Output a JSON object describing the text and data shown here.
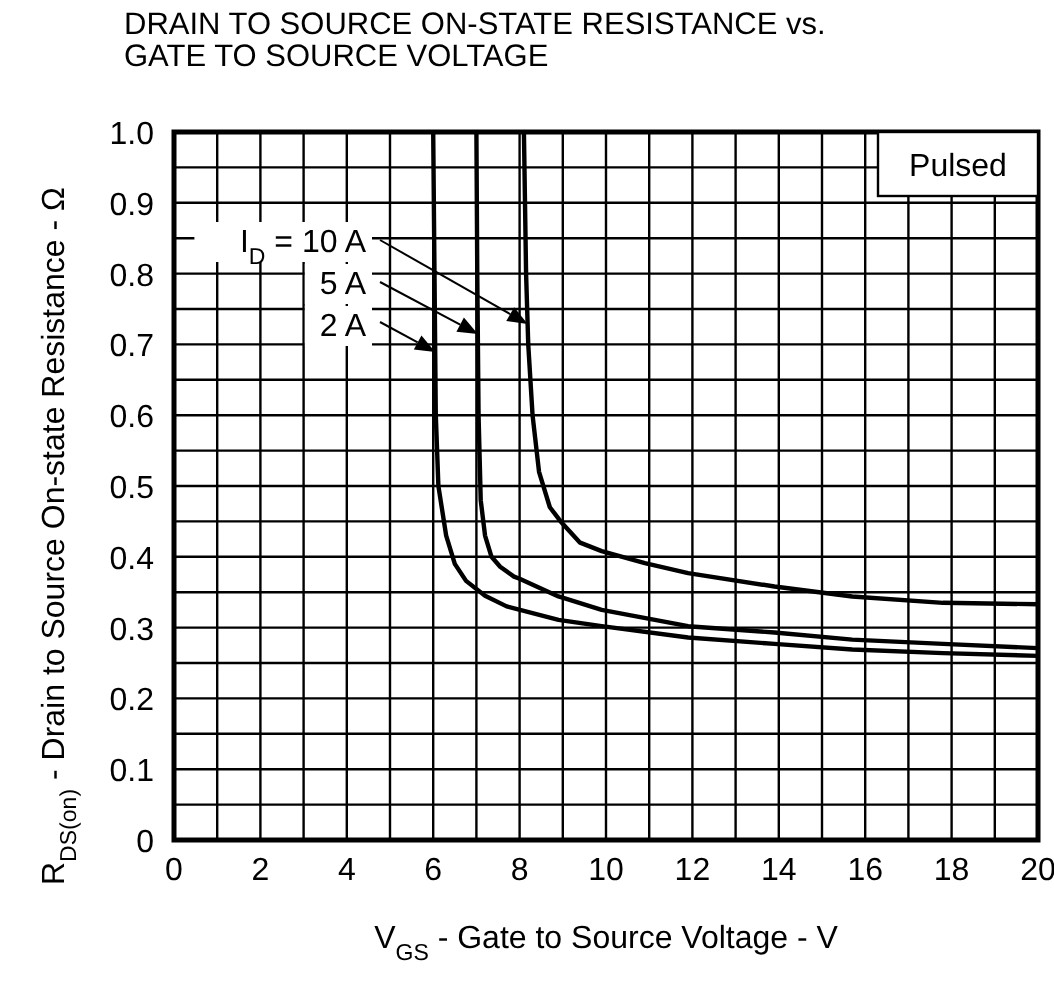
{
  "chart_data": {
    "type": "line",
    "title": "DRAIN TO SOURCE ON-STATE RESISTANCE vs.\nGATE TO SOURCE VOLTAGE",
    "xlabel": "V$_{GS}$ - Gate to Source Voltage - V",
    "ylabel": "R$_{DS(on)}$ - Drain to Source On-state Resistance - Ω",
    "annotations": [
      "Pulsed"
    ],
    "xlim": [
      0,
      20
    ],
    "ylim": [
      0,
      1
    ],
    "xticks": [
      0,
      {
        "value": 1,
        "label": null
      },
      2,
      {
        "value": 3,
        "label": null
      },
      4,
      {
        "value": 5,
        "label": null
      },
      6,
      {
        "value": 7,
        "label": null
      },
      8,
      {
        "value": 9,
        "label": null
      },
      10,
      {
        "value": 11,
        "label": null
      },
      12,
      {
        "value": 13,
        "label": null
      },
      14,
      {
        "value": 15,
        "label": null
      },
      16,
      {
        "value": 17,
        "label": null
      },
      18,
      {
        "value": 19,
        "label": null
      },
      20
    ],
    "yticks": [
      0,
      {
        "value": 0.05,
        "label": null
      },
      0.1,
      {
        "value": 0.15,
        "label": null
      },
      0.2,
      {
        "value": 0.25,
        "label": null
      },
      0.3,
      {
        "value": 0.35,
        "label": null
      },
      0.4,
      {
        "value": 0.45,
        "label": null
      },
      0.5,
      {
        "value": 0.55,
        "label": null
      },
      0.6,
      {
        "value": 0.65,
        "label": null
      },
      0.7,
      {
        "value": 0.75,
        "label": null
      },
      0.8,
      {
        "value": 0.85,
        "label": null
      },
      0.9,
      {
        "value": 0.95,
        "label": null
      },
      {
        "value": 1,
        "label": "1.0"
      }
    ],
    "grid": true,
    "legend": "top left",
    "line_style": "solid",
    "series": [
      {
        "name": "I$_{D}$ = 10 A",
        "color": "#000000",
        "x": [
          8.1,
          8.15,
          8.2,
          8.3,
          8.45,
          8.7,
          8.95,
          9.4,
          9.9,
          10.9,
          11.9,
          13.9,
          15.7,
          17.8,
          20
        ],
        "values": [
          1.0,
          0.8,
          0.7,
          0.6,
          0.52,
          0.47,
          0.45,
          0.42,
          0.408,
          0.391,
          0.377,
          0.358,
          0.344,
          0.335,
          0.333
        ]
      },
      {
        "name": "5 A",
        "color": "#000000",
        "x": [
          7.0,
          7.02,
          7.05,
          7.1,
          7.2,
          7.35,
          7.55,
          7.87,
          8.0,
          8.9,
          9.9,
          11.9,
          13.9,
          15.7,
          17.8,
          20
        ],
        "values": [
          1.0,
          0.8,
          0.6,
          0.48,
          0.43,
          0.4,
          0.386,
          0.372,
          0.369,
          0.344,
          0.325,
          0.302,
          0.293,
          0.283,
          0.277,
          0.271
        ]
      },
      {
        "name": "2 A",
        "color": "#000000",
        "x": [
          6.0,
          6.03,
          6.06,
          6.12,
          6.3,
          6.5,
          6.76,
          7.2,
          7.7,
          8.9,
          9.9,
          11.9,
          13.9,
          15.7,
          17.8,
          20
        ],
        "values": [
          1.0,
          0.8,
          0.6,
          0.5,
          0.43,
          0.39,
          0.366,
          0.345,
          0.33,
          0.311,
          0.302,
          0.286,
          0.277,
          0.269,
          0.264,
          0.26
        ]
      }
    ]
  }
}
